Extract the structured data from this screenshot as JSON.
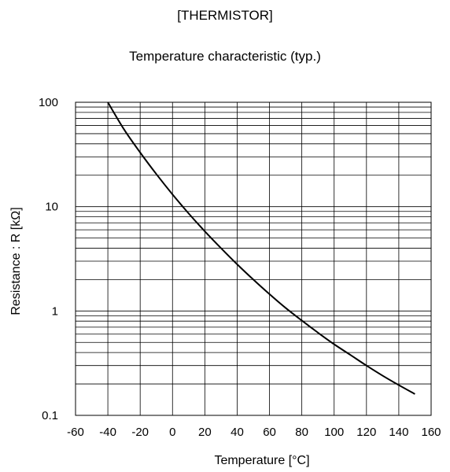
{
  "chart_data": {
    "type": "line",
    "title": "[THERMISTOR]",
    "subtitle": "Temperature characteristic (typ.)",
    "xlabel": "Temperature [°C]",
    "ylabel": "Resistance : R [kΩ]",
    "xlim": [
      -60,
      160
    ],
    "ylim": [
      0.1,
      100
    ],
    "yscale": "log",
    "grid": true,
    "x_ticks": [
      -60,
      -40,
      -20,
      0,
      20,
      40,
      60,
      80,
      100,
      120,
      140,
      160
    ],
    "x_tick_labels": [
      "-60",
      "-40",
      "-20",
      "0",
      "20",
      "40",
      "60",
      "80",
      "100",
      "120",
      "140",
      "160"
    ],
    "y_ticks": [
      0.1,
      1,
      10,
      100
    ],
    "y_tick_labels": [
      "0.1",
      "1",
      "10",
      "100"
    ],
    "series": [
      {
        "name": "",
        "x": [
          -40,
          -30,
          -20,
          -10,
          0,
          10,
          20,
          30,
          40,
          50,
          60,
          70,
          80,
          90,
          100,
          110,
          120,
          130,
          140,
          150
        ],
        "y": [
          100,
          55,
          33,
          20.5,
          13.1,
          8.6,
          5.8,
          4.0,
          2.8,
          2.0,
          1.45,
          1.07,
          0.81,
          0.62,
          0.48,
          0.38,
          0.3,
          0.24,
          0.195,
          0.16
        ]
      }
    ],
    "line_color": "#000000",
    "grid_color": "#000000"
  }
}
